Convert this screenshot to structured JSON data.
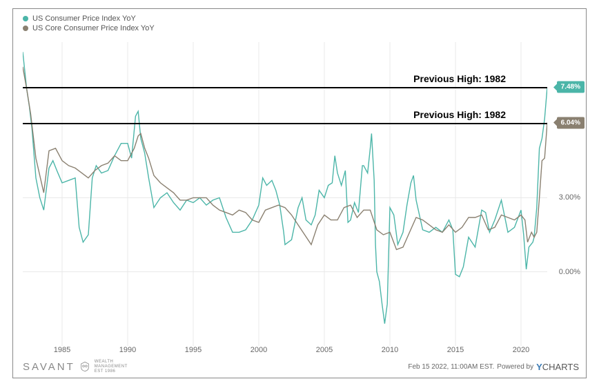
{
  "legend": {
    "series1": {
      "label": "US Consumer Price Index YoY",
      "color": "#4bb5a8"
    },
    "series2": {
      "label": "US Core Consumer Price Index YoY",
      "color": "#8a8070"
    }
  },
  "chart": {
    "type": "line",
    "background_color": "#ffffff",
    "grid_color": "#e8e8e8",
    "x": {
      "start_year": 1982,
      "end_year": 2022,
      "ticks": [
        1985,
        1990,
        1995,
        2000,
        2005,
        2010,
        2015,
        2020
      ]
    },
    "y": {
      "min": -3.0,
      "max": 9.3,
      "ticks": [
        {
          "v": 0.0,
          "label": "0.00%"
        },
        {
          "v": 3.0,
          "label": "3.00%"
        }
      ]
    },
    "reference_lines": [
      {
        "y": 7.48,
        "label": "Previous High: 1982"
      },
      {
        "y": 6.04,
        "label": "Previous High: 1982"
      }
    ],
    "badges": [
      {
        "y": 7.48,
        "text": "7.48%",
        "color": "#4bb5a8"
      },
      {
        "y": 6.04,
        "text": "6.04%",
        "color": "#8a8070"
      }
    ],
    "series": [
      {
        "name": "cpi",
        "color": "#4bb5a8",
        "line_width": 1.4,
        "points": [
          [
            1982.0,
            8.9
          ],
          [
            1982.3,
            7.4
          ],
          [
            1982.5,
            6.7
          ],
          [
            1982.7,
            5.8
          ],
          [
            1983.0,
            3.8
          ],
          [
            1983.3,
            3.0
          ],
          [
            1983.6,
            2.5
          ],
          [
            1984.0,
            4.2
          ],
          [
            1984.3,
            4.5
          ],
          [
            1984.6,
            4.1
          ],
          [
            1985.0,
            3.6
          ],
          [
            1985.5,
            3.7
          ],
          [
            1986.0,
            3.8
          ],
          [
            1986.3,
            1.8
          ],
          [
            1986.6,
            1.2
          ],
          [
            1987.0,
            1.5
          ],
          [
            1987.3,
            3.8
          ],
          [
            1987.6,
            4.3
          ],
          [
            1988.0,
            4.0
          ],
          [
            1988.5,
            4.1
          ],
          [
            1989.0,
            4.7
          ],
          [
            1989.5,
            5.2
          ],
          [
            1990.0,
            5.2
          ],
          [
            1990.3,
            4.6
          ],
          [
            1990.6,
            6.3
          ],
          [
            1990.8,
            6.5
          ],
          [
            1991.0,
            5.4
          ],
          [
            1991.3,
            4.8
          ],
          [
            1991.6,
            3.8
          ],
          [
            1992.0,
            2.6
          ],
          [
            1992.5,
            3.0
          ],
          [
            1993.0,
            3.2
          ],
          [
            1993.5,
            2.8
          ],
          [
            1994.0,
            2.5
          ],
          [
            1994.5,
            2.9
          ],
          [
            1995.0,
            2.8
          ],
          [
            1995.5,
            3.0
          ],
          [
            1996.0,
            2.7
          ],
          [
            1996.5,
            2.9
          ],
          [
            1997.0,
            3.0
          ],
          [
            1997.5,
            2.2
          ],
          [
            1998.0,
            1.6
          ],
          [
            1998.5,
            1.6
          ],
          [
            1999.0,
            1.7
          ],
          [
            1999.5,
            2.1
          ],
          [
            2000.0,
            2.7
          ],
          [
            2000.3,
            3.8
          ],
          [
            2000.6,
            3.5
          ],
          [
            2001.0,
            3.7
          ],
          [
            2001.3,
            3.3
          ],
          [
            2001.6,
            2.7
          ],
          [
            2001.9,
            1.6
          ],
          [
            2002.0,
            1.1
          ],
          [
            2002.5,
            1.3
          ],
          [
            2003.0,
            2.6
          ],
          [
            2003.3,
            3.0
          ],
          [
            2003.6,
            2.1
          ],
          [
            2004.0,
            1.9
          ],
          [
            2004.3,
            2.3
          ],
          [
            2004.6,
            3.3
          ],
          [
            2005.0,
            3.0
          ],
          [
            2005.3,
            3.5
          ],
          [
            2005.6,
            3.6
          ],
          [
            2005.8,
            4.7
          ],
          [
            2006.0,
            4.0
          ],
          [
            2006.3,
            3.5
          ],
          [
            2006.6,
            4.1
          ],
          [
            2006.8,
            2.0
          ],
          [
            2007.0,
            2.1
          ],
          [
            2007.3,
            2.8
          ],
          [
            2007.6,
            2.4
          ],
          [
            2007.9,
            4.3
          ],
          [
            2008.0,
            4.3
          ],
          [
            2008.3,
            4.0
          ],
          [
            2008.5,
            5.0
          ],
          [
            2008.6,
            5.6
          ],
          [
            2008.8,
            3.7
          ],
          [
            2008.9,
            1.1
          ],
          [
            2009.0,
            0.0
          ],
          [
            2009.2,
            -0.4
          ],
          [
            2009.4,
            -1.3
          ],
          [
            2009.6,
            -2.1
          ],
          [
            2009.8,
            -1.3
          ],
          [
            2010.0,
            2.6
          ],
          [
            2010.3,
            2.3
          ],
          [
            2010.6,
            1.1
          ],
          [
            2011.0,
            1.6
          ],
          [
            2011.3,
            2.7
          ],
          [
            2011.6,
            3.6
          ],
          [
            2011.8,
            3.9
          ],
          [
            2012.0,
            2.9
          ],
          [
            2012.5,
            1.7
          ],
          [
            2013.0,
            1.6
          ],
          [
            2013.5,
            1.8
          ],
          [
            2014.0,
            1.6
          ],
          [
            2014.5,
            2.1
          ],
          [
            2014.8,
            1.7
          ],
          [
            2015.0,
            -0.1
          ],
          [
            2015.3,
            -0.2
          ],
          [
            2015.6,
            0.2
          ],
          [
            2016.0,
            1.4
          ],
          [
            2016.5,
            1.0
          ],
          [
            2017.0,
            2.5
          ],
          [
            2017.3,
            2.4
          ],
          [
            2017.6,
            1.6
          ],
          [
            2018.0,
            2.1
          ],
          [
            2018.5,
            2.9
          ],
          [
            2019.0,
            1.6
          ],
          [
            2019.5,
            1.8
          ],
          [
            2020.0,
            2.5
          ],
          [
            2020.2,
            1.5
          ],
          [
            2020.4,
            0.1
          ],
          [
            2020.6,
            1.0
          ],
          [
            2020.9,
            1.2
          ],
          [
            2021.0,
            1.4
          ],
          [
            2021.2,
            2.6
          ],
          [
            2021.4,
            5.0
          ],
          [
            2021.6,
            5.4
          ],
          [
            2021.8,
            6.2
          ],
          [
            2022.0,
            7.48
          ]
        ]
      },
      {
        "name": "core_cpi",
        "color": "#8a8070",
        "line_width": 1.4,
        "points": [
          [
            1982.0,
            8.3
          ],
          [
            1982.3,
            7.4
          ],
          [
            1982.6,
            6.4
          ],
          [
            1983.0,
            4.6
          ],
          [
            1983.3,
            3.9
          ],
          [
            1983.6,
            3.2
          ],
          [
            1984.0,
            4.9
          ],
          [
            1984.5,
            5.0
          ],
          [
            1985.0,
            4.5
          ],
          [
            1985.5,
            4.3
          ],
          [
            1986.0,
            4.2
          ],
          [
            1986.5,
            4.0
          ],
          [
            1987.0,
            3.8
          ],
          [
            1987.5,
            4.1
          ],
          [
            1988.0,
            4.3
          ],
          [
            1988.5,
            4.4
          ],
          [
            1989.0,
            4.7
          ],
          [
            1989.5,
            4.5
          ],
          [
            1990.0,
            4.5
          ],
          [
            1990.5,
            5.0
          ],
          [
            1990.8,
            5.5
          ],
          [
            1991.0,
            5.6
          ],
          [
            1991.3,
            5.0
          ],
          [
            1991.6,
            4.6
          ],
          [
            1992.0,
            3.9
          ],
          [
            1992.5,
            3.6
          ],
          [
            1993.0,
            3.4
          ],
          [
            1993.5,
            3.2
          ],
          [
            1994.0,
            2.9
          ],
          [
            1994.5,
            2.9
          ],
          [
            1995.0,
            3.0
          ],
          [
            1995.5,
            3.0
          ],
          [
            1996.0,
            3.0
          ],
          [
            1996.5,
            2.7
          ],
          [
            1997.0,
            2.5
          ],
          [
            1997.5,
            2.4
          ],
          [
            1998.0,
            2.3
          ],
          [
            1998.5,
            2.5
          ],
          [
            1999.0,
            2.4
          ],
          [
            1999.5,
            2.1
          ],
          [
            2000.0,
            2.0
          ],
          [
            2000.5,
            2.5
          ],
          [
            2001.0,
            2.6
          ],
          [
            2001.5,
            2.7
          ],
          [
            2002.0,
            2.6
          ],
          [
            2002.5,
            2.3
          ],
          [
            2003.0,
            1.9
          ],
          [
            2003.5,
            1.5
          ],
          [
            2004.0,
            1.1
          ],
          [
            2004.5,
            1.9
          ],
          [
            2005.0,
            2.3
          ],
          [
            2005.5,
            2.1
          ],
          [
            2006.0,
            2.1
          ],
          [
            2006.5,
            2.6
          ],
          [
            2007.0,
            2.7
          ],
          [
            2007.5,
            2.2
          ],
          [
            2008.0,
            2.5
          ],
          [
            2008.5,
            2.5
          ],
          [
            2009.0,
            1.7
          ],
          [
            2009.5,
            1.5
          ],
          [
            2010.0,
            1.6
          ],
          [
            2010.5,
            0.9
          ],
          [
            2011.0,
            1.0
          ],
          [
            2011.5,
            1.6
          ],
          [
            2012.0,
            2.2
          ],
          [
            2012.5,
            2.1
          ],
          [
            2013.0,
            1.9
          ],
          [
            2013.5,
            1.7
          ],
          [
            2014.0,
            1.6
          ],
          [
            2014.5,
            1.9
          ],
          [
            2015.0,
            1.6
          ],
          [
            2015.5,
            1.8
          ],
          [
            2016.0,
            2.2
          ],
          [
            2016.5,
            2.2
          ],
          [
            2017.0,
            2.3
          ],
          [
            2017.5,
            1.7
          ],
          [
            2018.0,
            1.8
          ],
          [
            2018.5,
            2.3
          ],
          [
            2019.0,
            2.2
          ],
          [
            2019.5,
            2.1
          ],
          [
            2020.0,
            2.3
          ],
          [
            2020.3,
            2.1
          ],
          [
            2020.5,
            1.2
          ],
          [
            2020.8,
            1.6
          ],
          [
            2021.0,
            1.4
          ],
          [
            2021.2,
            1.6
          ],
          [
            2021.4,
            3.0
          ],
          [
            2021.6,
            4.5
          ],
          [
            2021.8,
            4.6
          ],
          [
            2022.0,
            6.04
          ]
        ]
      }
    ]
  },
  "footer": {
    "brand": "SAVANT",
    "subbrand_line1": "WEALTH",
    "subbrand_line2": "MANAGEMENT",
    "subbrand_line3": "EST 1986",
    "timestamp": "Feb 15 2022, 11:00AM EST.",
    "powered_by": "Powered by",
    "powered_brand": "CHARTS"
  }
}
